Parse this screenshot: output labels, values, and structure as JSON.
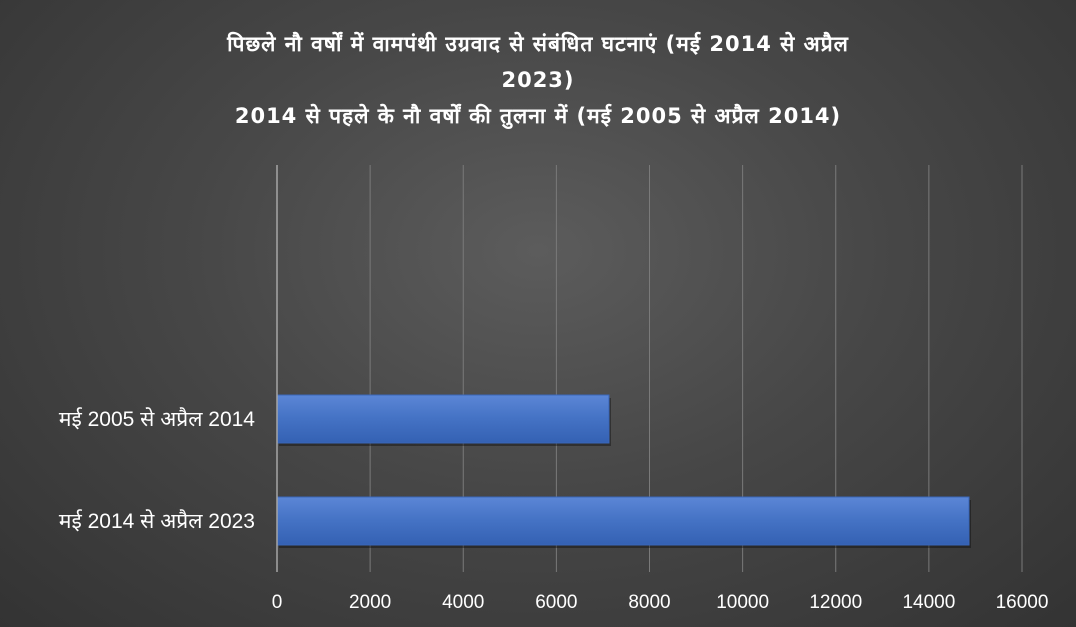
{
  "chart_data": {
    "type": "bar",
    "orientation": "horizontal",
    "title_lines": [
      "पिछले नौ वर्षों में वामपंथी उग्रवाद से संबंधित घटनाएं (मई 2014 से अप्रैल",
      "2023)",
      "2014 से पहले के नौ वर्षों की तुलना में (मई 2005 से अप्रैल 2014)"
    ],
    "categories": [
      "मई 2005 से अप्रैल 2014",
      "मई 2014 से अप्रैल 2023"
    ],
    "values": [
      7130,
      14862
    ],
    "xlim": [
      0,
      16000
    ],
    "x_ticks": [
      0,
      2000,
      4000,
      6000,
      8000,
      10000,
      12000,
      14000,
      16000
    ],
    "grid": true,
    "legend": "none",
    "bar_color": "#4472c4"
  }
}
